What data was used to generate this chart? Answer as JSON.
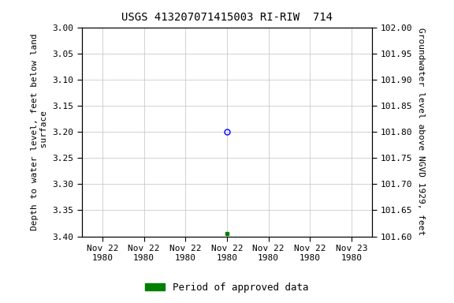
{
  "title": "USGS 413207071415003 RI-RIW  714",
  "ylabel_left": "Depth to water level, feet below land\n surface",
  "ylabel_right": "Groundwater level above NGVD 1929, feet",
  "ylim_left": [
    3.4,
    3.0
  ],
  "ylim_right": [
    101.6,
    102.0
  ],
  "yticks_left": [
    3.0,
    3.05,
    3.1,
    3.15,
    3.2,
    3.25,
    3.3,
    3.35,
    3.4
  ],
  "yticks_right": [
    101.6,
    101.65,
    101.7,
    101.75,
    101.8,
    101.85,
    101.9,
    101.95,
    102.0
  ],
  "data_point_x": 3.5,
  "data_point_value": 3.2,
  "data_point_color": "blue",
  "data_point_marker": "o",
  "approved_point_x": 3.5,
  "approved_point_value": 3.395,
  "approved_point_color": "#008000",
  "approved_point_marker": "s",
  "approved_point_size": 3.5,
  "legend_label": "Period of approved data",
  "legend_color": "#008000",
  "background_color": "#ffffff",
  "grid_color": "#c0c0c0",
  "title_fontsize": 10,
  "tick_fontsize": 8,
  "axis_label_fontsize": 8,
  "xlim": [
    0,
    7
  ],
  "xtick_positions": [
    0.5,
    1.5,
    2.5,
    3.5,
    4.5,
    5.5,
    6.5
  ],
  "xtick_labels": [
    "Nov 22\n1980",
    "Nov 22\n1980",
    "Nov 22\n1980",
    "Nov 22\n1980",
    "Nov 22\n1980",
    "Nov 22\n1980",
    "Nov 23\n1980"
  ]
}
